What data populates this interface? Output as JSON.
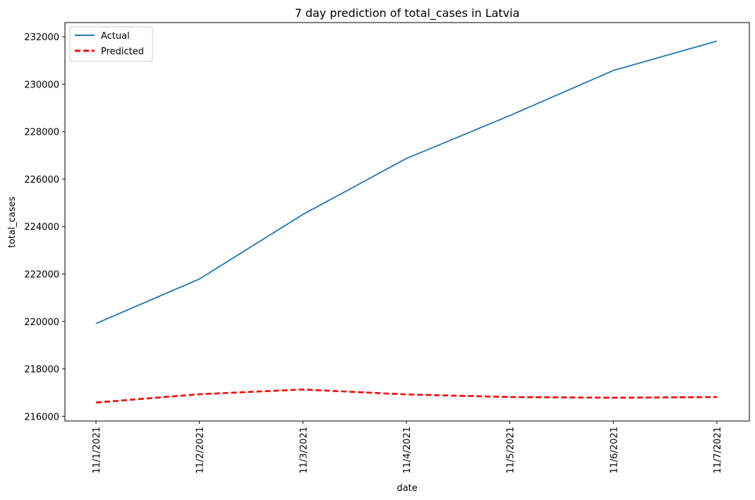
{
  "chart_data": {
    "type": "line",
    "title": "7 day prediction of total_cases in Latvia",
    "xlabel": "date",
    "ylabel": "total_cases",
    "categories": [
      "11/1/2021",
      "11/2/2021",
      "11/3/2021",
      "11/4/2021",
      "11/5/2021",
      "11/6/2021",
      "11/7/2021"
    ],
    "ylim": [
      215800,
      232600
    ],
    "yticks": [
      216000,
      218000,
      220000,
      222000,
      224000,
      226000,
      228000,
      230000,
      232000
    ],
    "grid": false,
    "legend_position": "top-left",
    "series": [
      {
        "name": "Actual",
        "color": "#1f77b4",
        "style": "solid",
        "values": [
          219910,
          221790,
          224510,
          226870,
          228680,
          230580,
          231820
        ]
      },
      {
        "name": "Predicted",
        "color": "#ff0000",
        "style": "dashed",
        "values": [
          216580,
          216930,
          217130,
          216920,
          216810,
          216780,
          216810
        ]
      }
    ]
  }
}
